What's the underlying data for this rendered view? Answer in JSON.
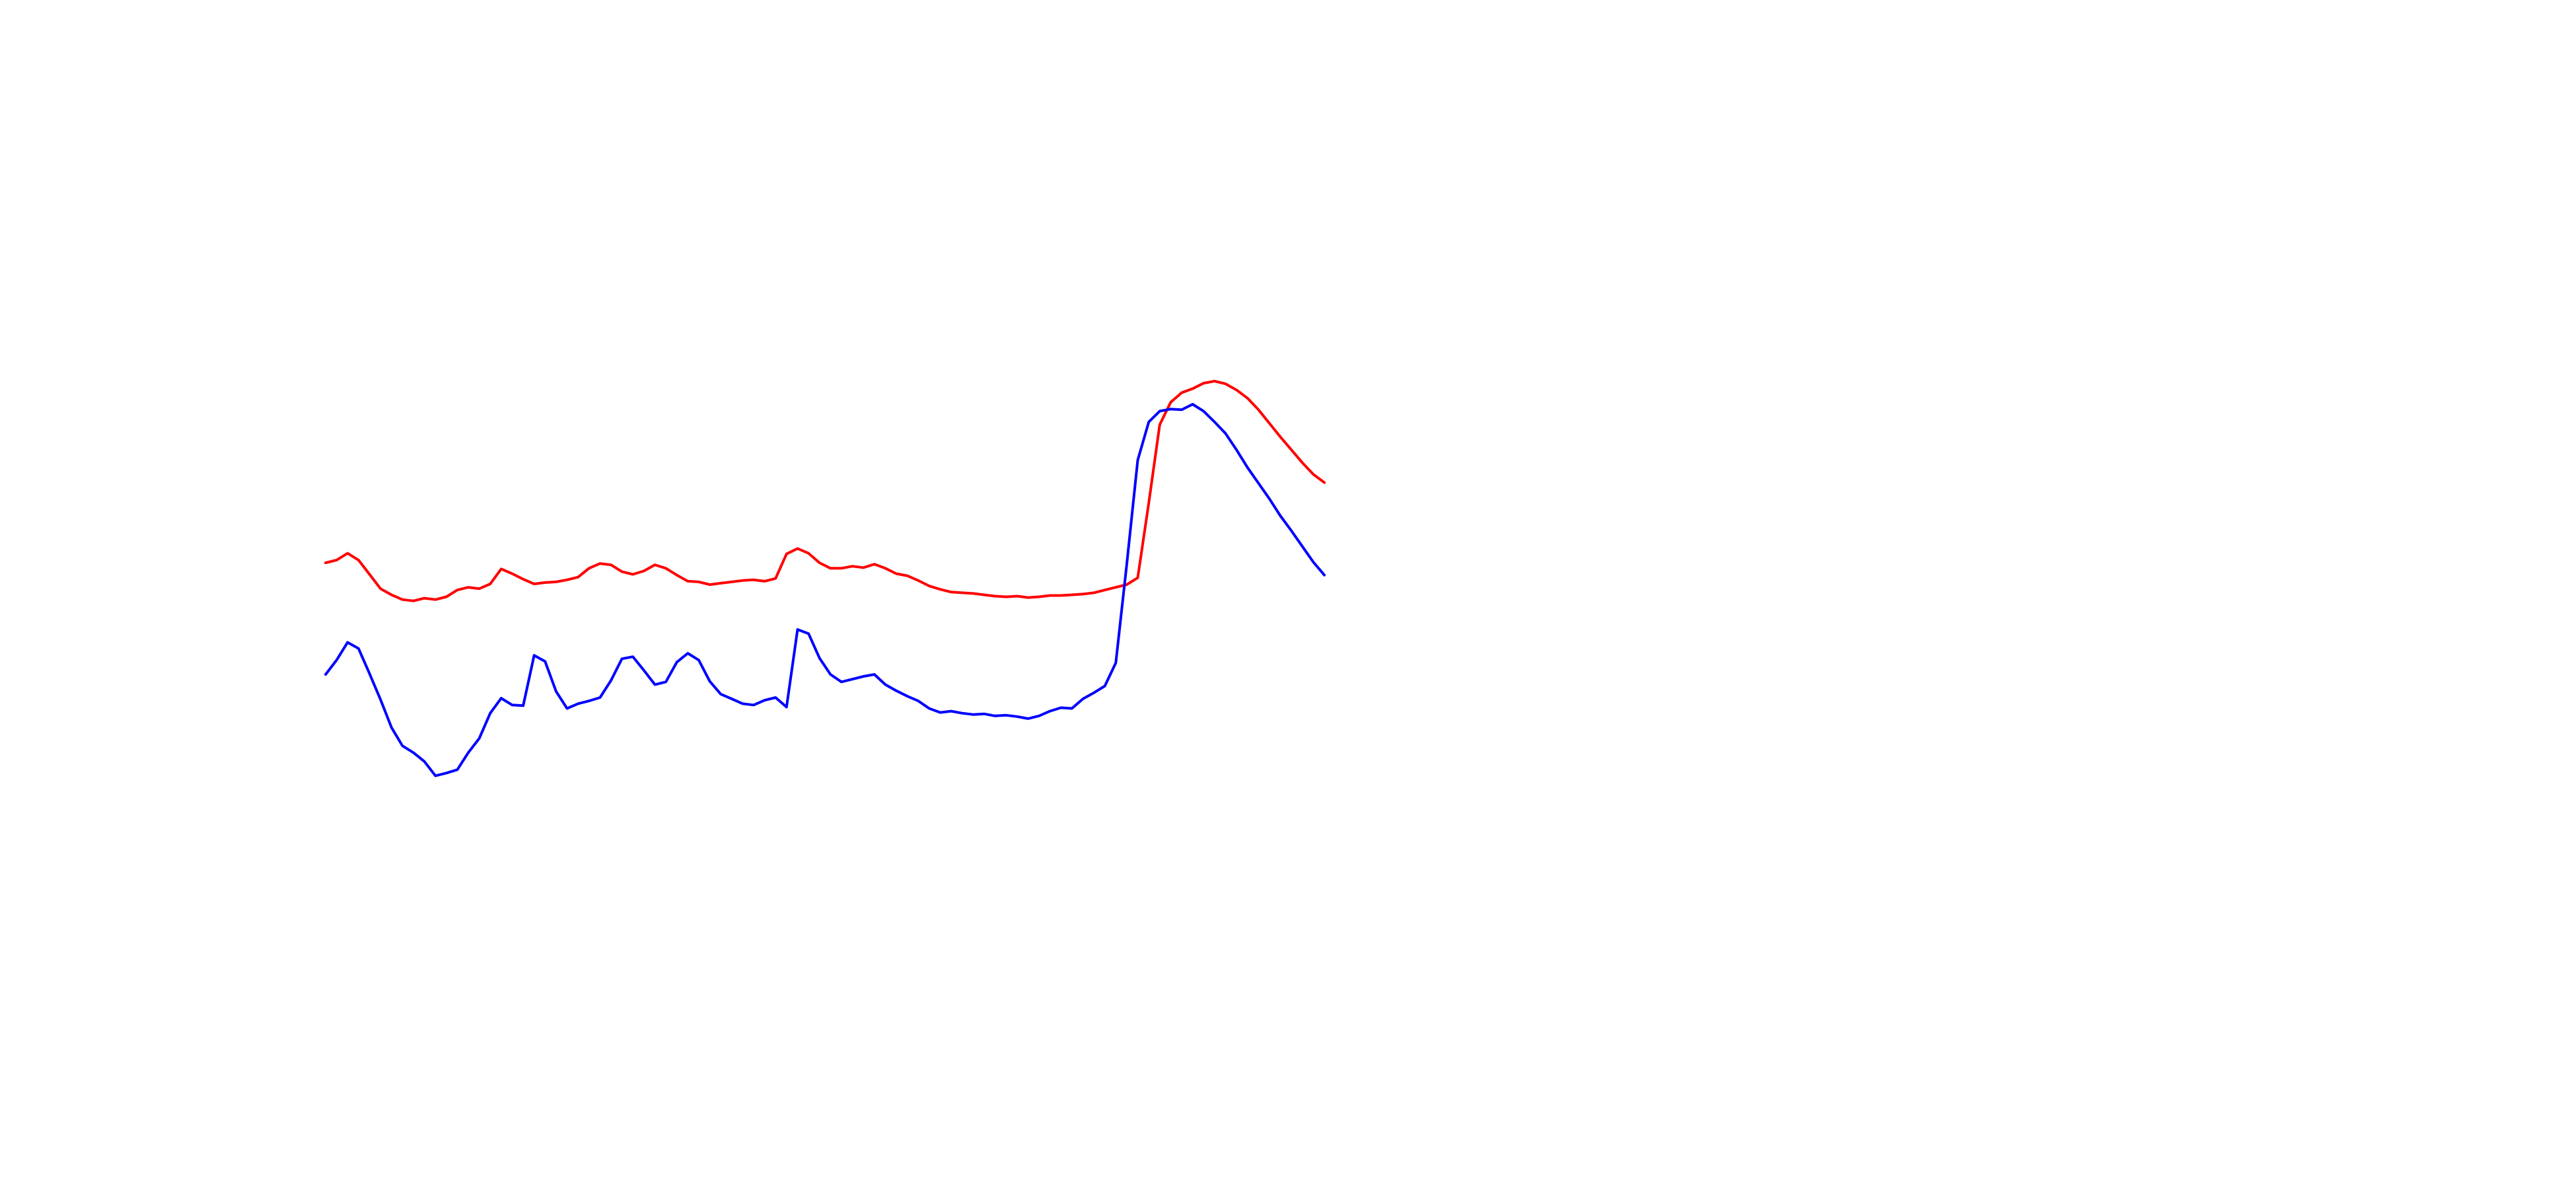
{
  "chart_data": {
    "type": "line",
    "title": "",
    "xlabel": "",
    "ylabel": "",
    "grid": false,
    "axes_visible": false,
    "legend": "none",
    "x_range": [
      0,
      101
    ],
    "y_range": [
      0,
      100
    ],
    "series": [
      {
        "color": "#ff0000",
        "points": [
          [
            0,
            53.2
          ],
          [
            1,
            53.6
          ],
          [
            2,
            54.6
          ],
          [
            3,
            53.6
          ],
          [
            4,
            51.5
          ],
          [
            5,
            49.4
          ],
          [
            6,
            48.5
          ],
          [
            7,
            47.8
          ],
          [
            8,
            47.6
          ],
          [
            9,
            48.0
          ],
          [
            10,
            47.8
          ],
          [
            11,
            48.2
          ],
          [
            12,
            49.2
          ],
          [
            13,
            49.6
          ],
          [
            14,
            49.4
          ],
          [
            15,
            50.1
          ],
          [
            16,
            52.3
          ],
          [
            17,
            51.6
          ],
          [
            18,
            50.8
          ],
          [
            19,
            50.1
          ],
          [
            20,
            50.3
          ],
          [
            21,
            50.4
          ],
          [
            22,
            50.7
          ],
          [
            23,
            51.1
          ],
          [
            24,
            52.4
          ],
          [
            25,
            53.1
          ],
          [
            26,
            52.9
          ],
          [
            27,
            51.9
          ],
          [
            28,
            51.5
          ],
          [
            29,
            52.0
          ],
          [
            30,
            52.9
          ],
          [
            31,
            52.4
          ],
          [
            32,
            51.4
          ],
          [
            33,
            50.5
          ],
          [
            34,
            50.4
          ],
          [
            35,
            50.0
          ],
          [
            36,
            50.2
          ],
          [
            37,
            50.4
          ],
          [
            38,
            50.6
          ],
          [
            39,
            50.7
          ],
          [
            40,
            50.5
          ],
          [
            41,
            50.9
          ],
          [
            42,
            54.5
          ],
          [
            43,
            55.3
          ],
          [
            44,
            54.6
          ],
          [
            45,
            53.2
          ],
          [
            46,
            52.4
          ],
          [
            47,
            52.4
          ],
          [
            48,
            52.7
          ],
          [
            49,
            52.5
          ],
          [
            50,
            53.0
          ],
          [
            51,
            52.4
          ],
          [
            52,
            51.6
          ],
          [
            53,
            51.3
          ],
          [
            54,
            50.6
          ],
          [
            55,
            49.8
          ],
          [
            56,
            49.3
          ],
          [
            57,
            48.9
          ],
          [
            58,
            48.8
          ],
          [
            59,
            48.7
          ],
          [
            60,
            48.5
          ],
          [
            61,
            48.3
          ],
          [
            62,
            48.2
          ],
          [
            63,
            48.3
          ],
          [
            64,
            48.1
          ],
          [
            65,
            48.2
          ],
          [
            66,
            48.4
          ],
          [
            67,
            48.4
          ],
          [
            68,
            48.5
          ],
          [
            69,
            48.6
          ],
          [
            70,
            48.8
          ],
          [
            71,
            49.2
          ],
          [
            72,
            49.6
          ],
          [
            73,
            50.0
          ],
          [
            74,
            51.0
          ],
          [
            75,
            62.0
          ],
          [
            76,
            73.5
          ],
          [
            77,
            76.8
          ],
          [
            78,
            78.2
          ],
          [
            79,
            78.8
          ],
          [
            80,
            79.6
          ],
          [
            81,
            79.9
          ],
          [
            82,
            79.5
          ],
          [
            83,
            78.6
          ],
          [
            84,
            77.4
          ],
          [
            85,
            75.7
          ],
          [
            86,
            73.7
          ],
          [
            87,
            71.7
          ],
          [
            88,
            69.8
          ],
          [
            89,
            67.9
          ],
          [
            90,
            66.2
          ],
          [
            91,
            65.0
          ]
        ]
      },
      {
        "color": "#0000ff",
        "points": [
          [
            0,
            36.8
          ],
          [
            1,
            38.9
          ],
          [
            2,
            41.5
          ],
          [
            3,
            40.6
          ],
          [
            4,
            36.9
          ],
          [
            5,
            33.1
          ],
          [
            6,
            29.0
          ],
          [
            7,
            26.3
          ],
          [
            8,
            25.3
          ],
          [
            9,
            24.0
          ],
          [
            10,
            21.9
          ],
          [
            11,
            22.3
          ],
          [
            12,
            22.8
          ],
          [
            13,
            25.3
          ],
          [
            14,
            27.4
          ],
          [
            15,
            31.1
          ],
          [
            16,
            33.3
          ],
          [
            17,
            32.3
          ],
          [
            18,
            32.2
          ],
          [
            19,
            39.6
          ],
          [
            20,
            38.7
          ],
          [
            21,
            34.3
          ],
          [
            22,
            31.8
          ],
          [
            23,
            32.5
          ],
          [
            24,
            32.9
          ],
          [
            25,
            33.4
          ],
          [
            26,
            35.9
          ],
          [
            27,
            39.1
          ],
          [
            28,
            39.4
          ],
          [
            29,
            37.4
          ],
          [
            30,
            35.3
          ],
          [
            31,
            35.7
          ],
          [
            32,
            38.6
          ],
          [
            33,
            39.9
          ],
          [
            34,
            38.9
          ],
          [
            35,
            35.8
          ],
          [
            36,
            33.9
          ],
          [
            37,
            33.2
          ],
          [
            38,
            32.5
          ],
          [
            39,
            32.3
          ],
          [
            40,
            33.0
          ],
          [
            41,
            33.4
          ],
          [
            42,
            32.0
          ],
          [
            43,
            43.4
          ],
          [
            44,
            42.8
          ],
          [
            45,
            39.2
          ],
          [
            46,
            36.8
          ],
          [
            47,
            35.7
          ],
          [
            48,
            36.1
          ],
          [
            49,
            36.5
          ],
          [
            50,
            36.8
          ],
          [
            51,
            35.3
          ],
          [
            52,
            34.4
          ],
          [
            53,
            33.6
          ],
          [
            54,
            32.9
          ],
          [
            55,
            31.8
          ],
          [
            56,
            31.2
          ],
          [
            57,
            31.4
          ],
          [
            58,
            31.1
          ],
          [
            59,
            30.9
          ],
          [
            60,
            31.0
          ],
          [
            61,
            30.7
          ],
          [
            62,
            30.8
          ],
          [
            63,
            30.6
          ],
          [
            64,
            30.3
          ],
          [
            65,
            30.7
          ],
          [
            66,
            31.4
          ],
          [
            67,
            31.9
          ],
          [
            68,
            31.8
          ],
          [
            69,
            33.2
          ],
          [
            70,
            34.1
          ],
          [
            71,
            35.1
          ],
          [
            72,
            38.5
          ],
          [
            73,
            53.0
          ],
          [
            74,
            68.3
          ],
          [
            75,
            73.9
          ],
          [
            76,
            75.5
          ],
          [
            77,
            75.8
          ],
          [
            78,
            75.7
          ],
          [
            79,
            76.5
          ],
          [
            80,
            75.5
          ],
          [
            81,
            73.9
          ],
          [
            82,
            72.2
          ],
          [
            83,
            69.8
          ],
          [
            84,
            67.2
          ],
          [
            85,
            64.9
          ],
          [
            86,
            62.6
          ],
          [
            87,
            60.1
          ],
          [
            88,
            57.9
          ],
          [
            89,
            55.6
          ],
          [
            90,
            53.3
          ],
          [
            91,
            51.4
          ]
        ]
      }
    ]
  }
}
